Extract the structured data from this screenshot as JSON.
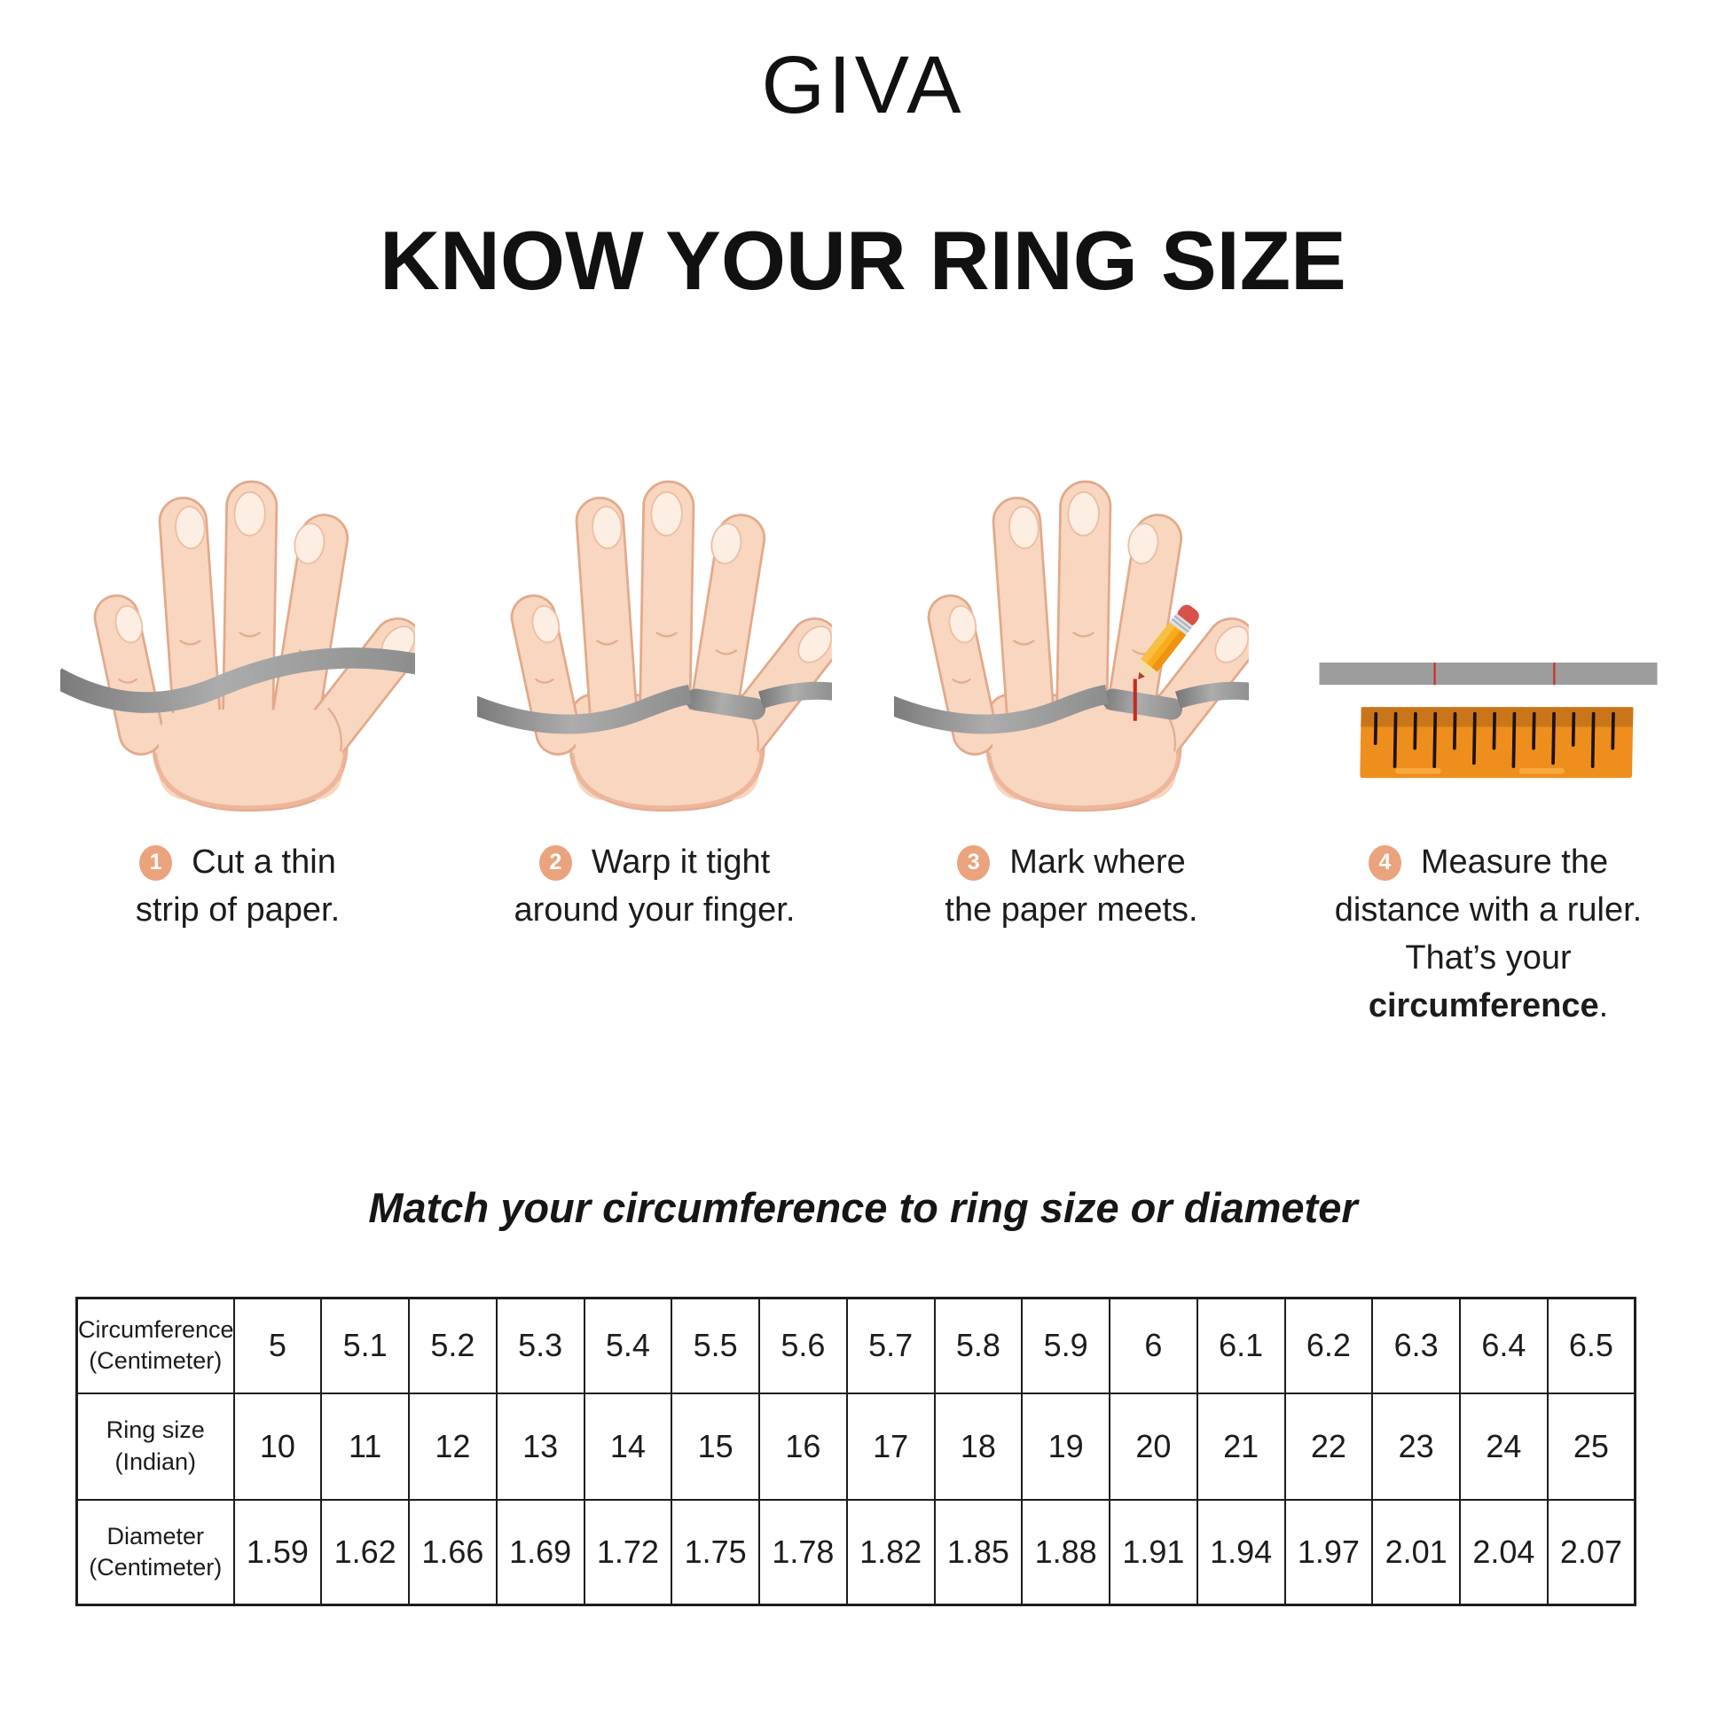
{
  "brand": {
    "logo_text": "GIVA"
  },
  "title": "KNOW YOUR RING SIZE",
  "steps": [
    {
      "number": "1",
      "lines": [
        "Cut a thin",
        "strip of paper."
      ]
    },
    {
      "number": "2",
      "lines": [
        "Warp it tight",
        "around your finger."
      ]
    },
    {
      "number": "3",
      "lines": [
        "Mark where",
        "the paper meets."
      ]
    },
    {
      "number": "4",
      "lines": [
        "Measure the",
        "distance with a ruler."
      ],
      "line3_prefix": "That’s your ",
      "line3_bold": "circumference",
      "line3_suffix": "."
    }
  ],
  "illustrations": {
    "step1": "hand-with-paper-strip",
    "step2": "hand-strip-wrapped-around-finger",
    "step3": "hand-strip-marked-with-pencil",
    "step4": "paper-strip-and-ruler"
  },
  "table_section": {
    "heading": "Match your circumference to ring size or diameter",
    "rows": [
      {
        "label": [
          "Circumference",
          "(Centimeter)"
        ],
        "values": [
          "5",
          "5.1",
          "5.2",
          "5.3",
          "5.4",
          "5.5",
          "5.6",
          "5.7",
          "5.8",
          "5.9",
          "6",
          "6.1",
          "6.2",
          "6.3",
          "6.4",
          "6.5"
        ]
      },
      {
        "label": [
          "Ring size",
          "(Indian)"
        ],
        "values": [
          "10",
          "11",
          "12",
          "13",
          "14",
          "15",
          "16",
          "17",
          "18",
          "19",
          "20",
          "21",
          "22",
          "23",
          "24",
          "25"
        ]
      },
      {
        "label": [
          "Diameter",
          "(Centimeter)"
        ],
        "values": [
          "1.59",
          "1.62",
          "1.66",
          "1.69",
          "1.72",
          "1.75",
          "1.78",
          "1.82",
          "1.85",
          "1.88",
          "1.91",
          "1.94",
          "1.97",
          "2.01",
          "2.04",
          "2.07"
        ]
      }
    ]
  },
  "colors": {
    "badge": "#EAA37C",
    "skin": "#F8D6C0",
    "skin_outline": "#E2A98B",
    "strip_gray": "#8F8F8F",
    "ruler_orange": "#EE8E1D",
    "ruler_band": "#C9761B",
    "mark_red": "#C52B20",
    "pencil_yellow": "#F9AC1B",
    "text": "#1c1c1c"
  }
}
